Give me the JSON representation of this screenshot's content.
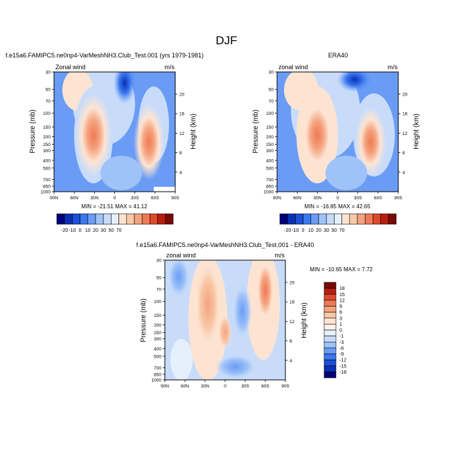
{
  "page": {
    "title": "DJF",
    "model_label": "f.e15a6.FAMIPC5.ne0np4-VarMeshNH3.Club_Test.001 (yrs 1979-1981)",
    "obs_label": "ERA40",
    "diff_label": "f.e15a6.FAMIPC5.ne0np4-VarMeshNH3.Club_Test.001 - ERA40"
  },
  "chart_data": [
    {
      "type": "heatmap",
      "id": "model",
      "panel_left": "Zonal wind",
      "panel_right": "m/s",
      "ylabel": "Pressure (mb)",
      "y2label": "Height (km)",
      "x_ticks": [
        "90N",
        "60N",
        "30N",
        "0",
        "30S",
        "60S",
        "90S"
      ],
      "y_ticks": [
        "30",
        "50",
        "70",
        "100",
        "150",
        "200",
        "250",
        "300",
        "400",
        "500",
        "700",
        "850",
        "1000"
      ],
      "y2_ticks": [
        "20",
        "16",
        "12",
        "8",
        "4"
      ],
      "ylim": [
        1000,
        30
      ],
      "stats": "MIN = -21.51  MAX = 41.12",
      "min": -21.51,
      "max": 41.12,
      "features": [
        {
          "lat": 30,
          "p": 200,
          "value": 40
        },
        {
          "lat": -52,
          "p": 250,
          "value": 38
        },
        {
          "lat": -10,
          "p": 30,
          "value": -21
        }
      ]
    },
    {
      "type": "heatmap",
      "id": "obs",
      "panel_left": "zonal wind",
      "panel_right": "m/s",
      "ylabel": "Pressure (mb)",
      "y2label": "Height (km)",
      "x_ticks": [
        "90N",
        "60N",
        "30N",
        "0",
        "30S",
        "60S",
        "90S"
      ],
      "y_ticks": [
        "30",
        "50",
        "70",
        "100",
        "150",
        "200",
        "250",
        "300",
        "400",
        "500",
        "700",
        "850",
        "1000"
      ],
      "y2_ticks": [
        "20",
        "16",
        "12",
        "8",
        "4"
      ],
      "ylim": [
        1000,
        30
      ],
      "stats": "MIN = -16.85  MAX = 42.65",
      "min": -16.85,
      "max": 42.65,
      "features": [
        {
          "lat": 30,
          "p": 200,
          "value": 42
        },
        {
          "lat": -52,
          "p": 250,
          "value": 38
        },
        {
          "lat": -5,
          "p": 30,
          "value": -16
        }
      ]
    },
    {
      "type": "heatmap",
      "id": "diff",
      "panel_left": "zonal wind",
      "panel_right": "m/s",
      "ylabel": "Pressure (mb)",
      "y2label": "Height (km)",
      "x_ticks": [
        "90N",
        "60N",
        "30N",
        "0",
        "30S",
        "60S",
        "90S"
      ],
      "y_ticks": [
        "30",
        "50",
        "70",
        "100",
        "150",
        "200",
        "250",
        "300",
        "400",
        "500",
        "700",
        "850",
        "1000"
      ],
      "y2_ticks": [
        "20",
        "16",
        "12",
        "8",
        "4"
      ],
      "ylim": [
        1000,
        30
      ],
      "stats": "MIN = -10.65  MAX =  7.72",
      "min": -10.65,
      "max": 7.72,
      "features": [
        {
          "lat": -55,
          "p": 70,
          "value": 7
        },
        {
          "lat": 5,
          "p": 300,
          "value": 4
        },
        {
          "lat": 75,
          "p": 50,
          "value": -8
        }
      ]
    }
  ],
  "colorbars": {
    "main": {
      "labels": [
        "-20",
        "-10",
        "0",
        "10",
        "20",
        "30",
        "50",
        "70"
      ],
      "colors": [
        "#00007a",
        "#0b2fb4",
        "#1c50d8",
        "#3a78f0",
        "#6a9cf5",
        "#9fc3f8",
        "#c8dcfa",
        "#e6f0fc",
        "#fde4d2",
        "#f9c8a8",
        "#f5a37f",
        "#ee7a55",
        "#de4a2c",
        "#b81e10",
        "#7a0a06"
      ]
    },
    "diff": {
      "labels": [
        "18",
        "15",
        "12",
        "9",
        "6",
        "3",
        "1",
        "0",
        "-1",
        "-3",
        "-6",
        "-9",
        "-12",
        "-15",
        "-18"
      ],
      "colors": [
        "#7a0a06",
        "#b81e10",
        "#de4a2c",
        "#ee7a55",
        "#f5a37f",
        "#f9c8a8",
        "#fde4d2",
        "#fdf1e8",
        "#e6f0fc",
        "#c8dcfa",
        "#9fc3f8",
        "#6a9cf5",
        "#3a78f0",
        "#1c50d8",
        "#0b2fb4",
        "#00007a"
      ]
    }
  }
}
